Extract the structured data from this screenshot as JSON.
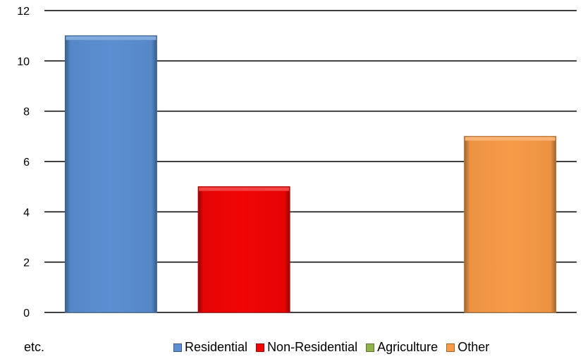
{
  "chart_data": {
    "type": "bar",
    "categories": [
      "Residential",
      "Non-Residential",
      "Agriculture",
      "Other"
    ],
    "values": [
      11,
      5,
      0,
      7
    ],
    "colors": [
      "#5b8fd1",
      "#f10505",
      "#8eb34e",
      "#f79b47"
    ],
    "ylim": [
      0,
      12
    ],
    "yticks": [
      0,
      2,
      4,
      6,
      8,
      10,
      12
    ],
    "grid": true,
    "legend_position": "bottom",
    "legend": [
      "Residential",
      "Non-Residential",
      "Agriculture",
      "Other"
    ]
  },
  "legend_note": "etc."
}
